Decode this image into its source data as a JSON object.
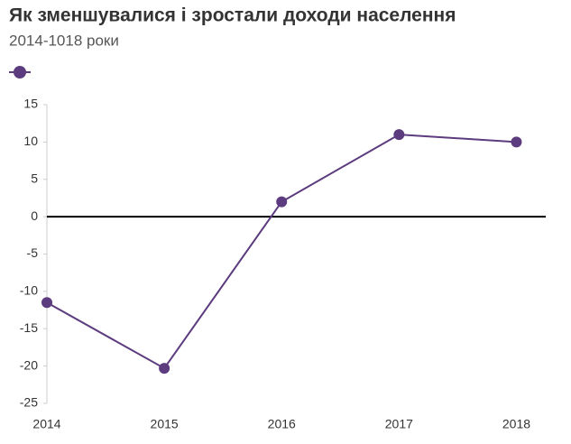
{
  "chart_data": {
    "type": "line",
    "title": "Як зменшувалися і зростали доходи населення",
    "subtitle": "2014-1018 роки",
    "x": [
      2014,
      2015,
      2016,
      2017,
      2018
    ],
    "series": [
      {
        "color": "#5c3b7e",
        "values": [
          -11.5,
          -20.3,
          2,
          11,
          10
        ]
      }
    ],
    "xlim": [
      2014,
      2018.25
    ],
    "xticks": [
      2014,
      2015,
      2016,
      2017,
      2018
    ],
    "ylim": [
      -25,
      15
    ],
    "yticks": [
      -25,
      -20,
      -15,
      -10,
      -5,
      0,
      5,
      10,
      15
    ],
    "grid": false
  }
}
